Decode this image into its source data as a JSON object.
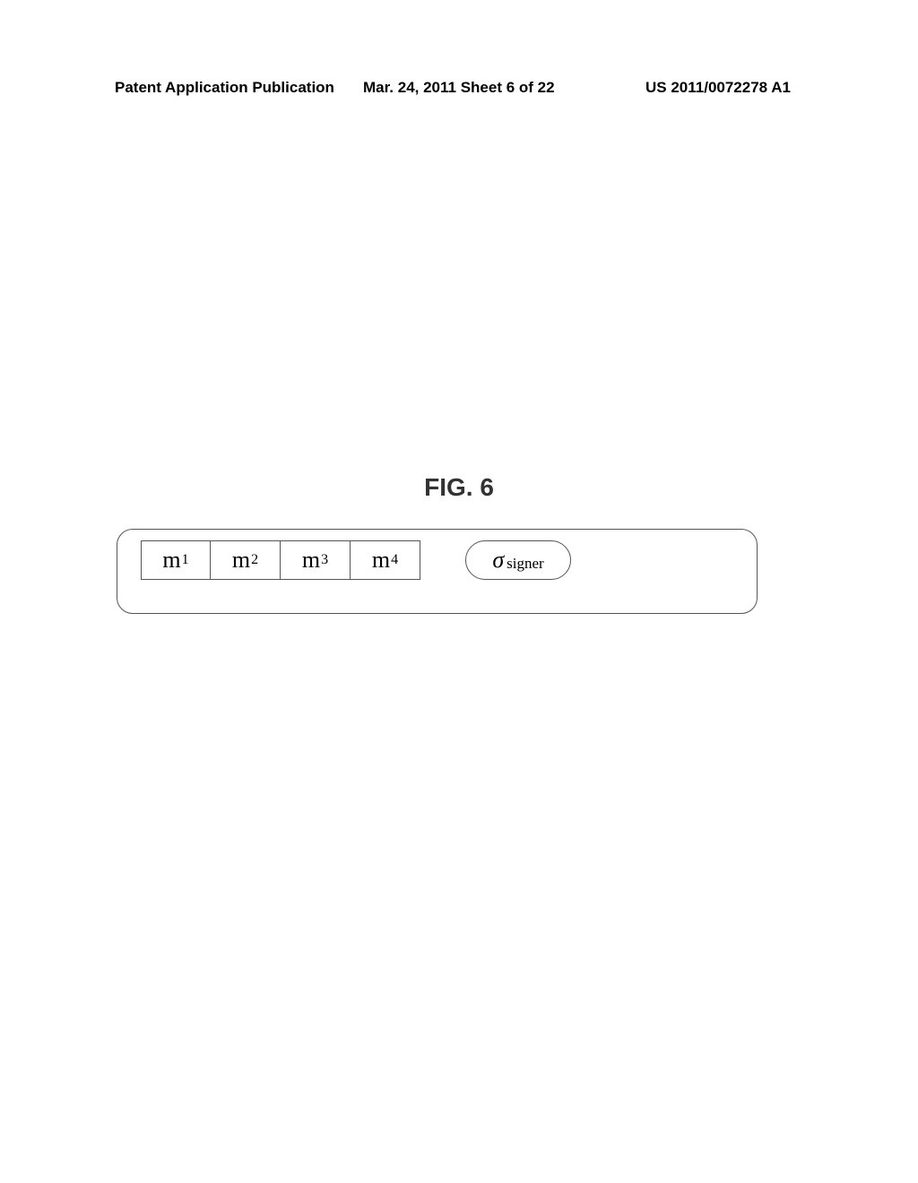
{
  "header": {
    "left": "Patent Application Publication",
    "center": "Mar. 24, 2011  Sheet 6 of 22",
    "right": "US 2011/0072278 A1"
  },
  "figure": {
    "label": "FIG.  6"
  },
  "blocks": [
    {
      "base": "m",
      "sub": "1"
    },
    {
      "base": "m",
      "sub": "2"
    },
    {
      "base": "m",
      "sub": "3"
    },
    {
      "base": "m",
      "sub": "4"
    }
  ],
  "sigma": {
    "symbol": "σ",
    "subscript": "signer"
  }
}
